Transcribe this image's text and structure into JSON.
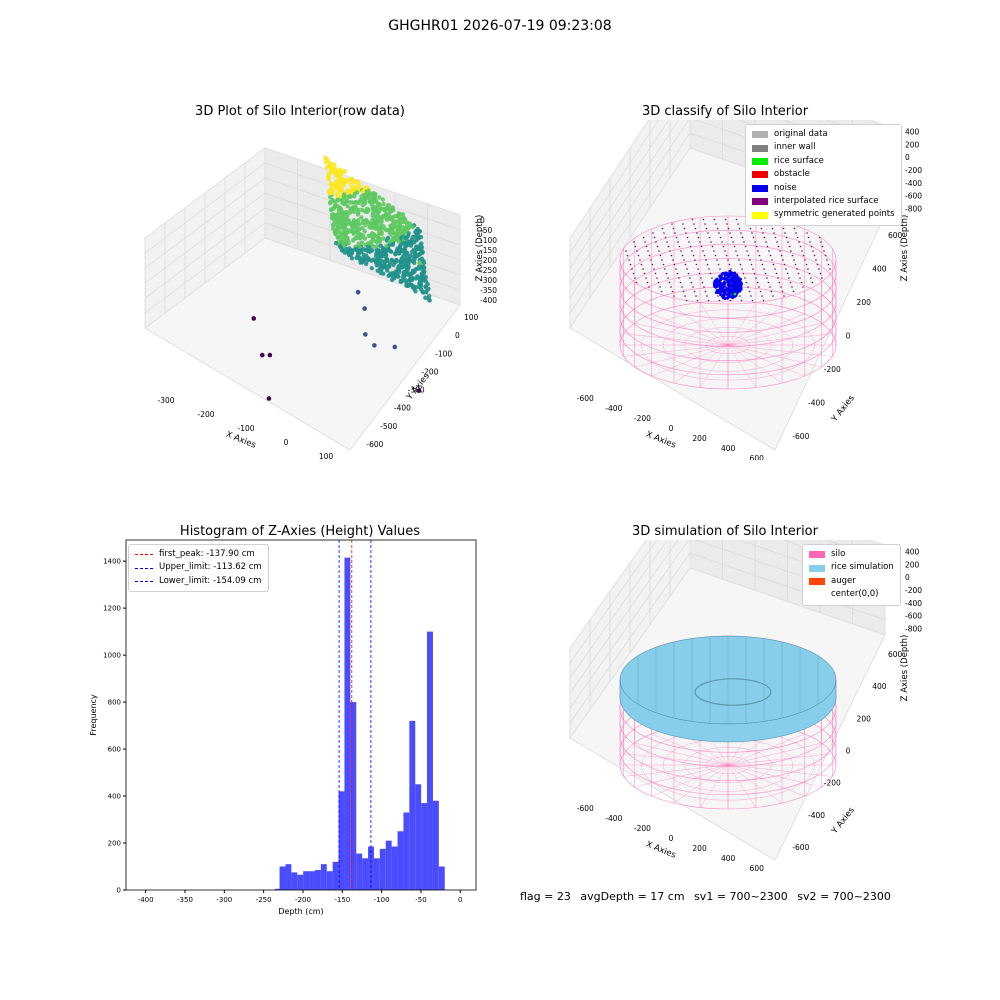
{
  "page": {
    "suptitle": "GHGHR01 2026-07-19 09:23:08"
  },
  "footer": {
    "flag": "flag = 23",
    "avg_depth": "avgDepth = 17 cm",
    "sv1": "sv1 = 700~2300",
    "sv2": "sv2 = 700~2300"
  },
  "chart_data": [
    {
      "type": "scatter",
      "title": "3D Plot of Silo Interior(row data)",
      "xlabel": "X Axies",
      "ylabel": "Y Axies",
      "zlabel": "Z Axies (Depth)",
      "x_ticks": [
        "-300",
        "-200",
        "-100",
        "0",
        "100"
      ],
      "y_ticks": [
        "-600",
        "-500",
        "-400",
        "-300",
        "-200",
        "-100",
        "0",
        "100"
      ],
      "z_ticks": [
        "0",
        "-50",
        "-100",
        "-150",
        "-200",
        "-250",
        "-300",
        "-350",
        "-400"
      ],
      "xlim": [
        -350,
        150
      ],
      "ylim": [
        -620,
        130
      ],
      "zlim": [
        -420,
        20
      ],
      "colormap": [
        "#440154",
        "#3b528b",
        "#21918c",
        "#5ec962",
        "#fde725"
      ],
      "cluster": {
        "x_range": [
          0,
          130
        ],
        "y_range": [
          -60,
          110
        ],
        "z_range": [
          -290,
          0
        ]
      },
      "outliers": [
        {
          "x": -340,
          "y": 60,
          "z": -390
        },
        {
          "x": -260,
          "y": -100,
          "z": -400
        },
        {
          "x": -230,
          "y": -130,
          "z": -380
        },
        {
          "x": -170,
          "y": -300,
          "z": -410
        },
        {
          "x": -70,
          "y": 80,
          "z": -280
        },
        {
          "x": -90,
          "y": 90,
          "z": -250
        },
        {
          "x": -50,
          "y": 30,
          "z": -320
        },
        {
          "x": -20,
          "y": 10,
          "z": -330
        },
        {
          "x": 20,
          "y": 40,
          "z": -330
        },
        {
          "x": 110,
          "y": -40,
          "z": -380
        },
        {
          "x": 0,
          "y": 100,
          "z": -180
        },
        {
          "x": 40,
          "y": 110,
          "z": -160
        },
        {
          "x": 60,
          "y": 100,
          "z": -130
        }
      ]
    },
    {
      "type": "scatter",
      "title": "3D classify of Silo Interior",
      "xlabel": "X Axies",
      "ylabel": "Y Axies",
      "zlabel": "Z Axies (Depth)",
      "x_ticks": [
        "-600",
        "-400",
        "-200",
        "0",
        "200",
        "400",
        "600"
      ],
      "y_ticks": [
        "-600",
        "-400",
        "-200",
        "0",
        "200",
        "400",
        "600"
      ],
      "z_ticks": [
        "400",
        "200",
        "0",
        "-200",
        "-400",
        "-600",
        "-800"
      ],
      "xlim": [
        -700,
        700
      ],
      "ylim": [
        -700,
        700
      ],
      "zlim": [
        -900,
        500
      ],
      "legend": [
        {
          "label": "original data",
          "color": "#b0b0b0"
        },
        {
          "label": "inner wall",
          "color": "#808080"
        },
        {
          "label": "rice surface",
          "color": "#00ee00"
        },
        {
          "label": "obstacle",
          "color": "#ee0000"
        },
        {
          "label": "noise",
          "color": "#0000ee"
        },
        {
          "label": "interpolated rice surface",
          "color": "#800080"
        },
        {
          "label": "symmetric generated points",
          "color": "#ffff00"
        }
      ],
      "silo": {
        "radius": 600,
        "top_z": 200,
        "bottom_z": -900,
        "color": "#ff69b4"
      },
      "noise_cluster": {
        "x_range": [
          -100,
          100
        ],
        "y_range": [
          -100,
          100
        ],
        "z_range": [
          -300,
          -100
        ]
      }
    },
    {
      "type": "bar",
      "title": "Histogram of Z-Axies (Height) Values",
      "xlabel": "Depth (cm)",
      "ylabel": "Frequency",
      "xlim": [
        -425,
        20
      ],
      "ylim": [
        0,
        1490
      ],
      "x_ticks": [
        -400,
        -350,
        -300,
        -250,
        -200,
        -150,
        -100,
        -50,
        0
      ],
      "y_ticks": [
        0,
        200,
        400,
        600,
        800,
        1000,
        1200,
        1400
      ],
      "bar_color": "#3333ff",
      "bin_width": 7.5,
      "bins": [
        {
          "x": -232,
          "value": 5
        },
        {
          "x": -226,
          "value": 100
        },
        {
          "x": -218.5,
          "value": 110
        },
        {
          "x": -211,
          "value": 75
        },
        {
          "x": -203.5,
          "value": 65
        },
        {
          "x": -196,
          "value": 80
        },
        {
          "x": -188.5,
          "value": 80
        },
        {
          "x": -181,
          "value": 85
        },
        {
          "x": -173.5,
          "value": 110
        },
        {
          "x": -166,
          "value": 80
        },
        {
          "x": -158.5,
          "value": 120
        },
        {
          "x": -151,
          "value": 420
        },
        {
          "x": -143.5,
          "value": 1415
        },
        {
          "x": -136,
          "value": 800
        },
        {
          "x": -128.5,
          "value": 155
        },
        {
          "x": -121,
          "value": 135
        },
        {
          "x": -113.5,
          "value": 185
        },
        {
          "x": -106,
          "value": 135
        },
        {
          "x": -98.5,
          "value": 175
        },
        {
          "x": -91,
          "value": 210
        },
        {
          "x": -83.5,
          "value": 185
        },
        {
          "x": -76,
          "value": 250
        },
        {
          "x": -68.5,
          "value": 330
        },
        {
          "x": -61,
          "value": 720
        },
        {
          "x": -53.5,
          "value": 450
        },
        {
          "x": -46,
          "value": 370
        },
        {
          "x": -38.5,
          "value": 1100
        },
        {
          "x": -31,
          "value": 380
        },
        {
          "x": -23.5,
          "value": 100
        }
      ],
      "lines": [
        {
          "label": "first_peak: -137.90 cm",
          "x": -137.9,
          "color": "#ff0000"
        },
        {
          "label": "Upper_limit: -113.62 cm",
          "x": -113.62,
          "color": "#0000ff"
        },
        {
          "label": "Lower_limit: -154.09 cm",
          "x": -154.09,
          "color": "#0000ff"
        }
      ]
    },
    {
      "type": "area",
      "title": "3D simulation of Silo Interior",
      "xlabel": "X Axies",
      "ylabel": "Y Axies",
      "zlabel": "Z Axies (Depth)",
      "x_ticks": [
        "-600",
        "-400",
        "-200",
        "0",
        "200",
        "400",
        "600"
      ],
      "y_ticks": [
        "-600",
        "-400",
        "-200",
        "0",
        "200",
        "400",
        "600"
      ],
      "z_ticks": [
        "400",
        "200",
        "0",
        "-200",
        "-400",
        "-600",
        "-800"
      ],
      "xlim": [
        -700,
        700
      ],
      "ylim": [
        -700,
        700
      ],
      "zlim": [
        -900,
        500
      ],
      "legend": [
        {
          "label": "silo",
          "color": "#ff69b4"
        },
        {
          "label": "rice simulation",
          "color": "#87ceeb"
        },
        {
          "label": "auger",
          "color": "#ff4500"
        },
        {
          "label": "center(0,0)",
          "color": ""
        }
      ],
      "silo": {
        "radius": 600,
        "top_z": 200,
        "bottom_z": -900,
        "color": "#ff69b4"
      },
      "rice_surface": {
        "z": 0,
        "color": "#87ceeb"
      }
    }
  ]
}
